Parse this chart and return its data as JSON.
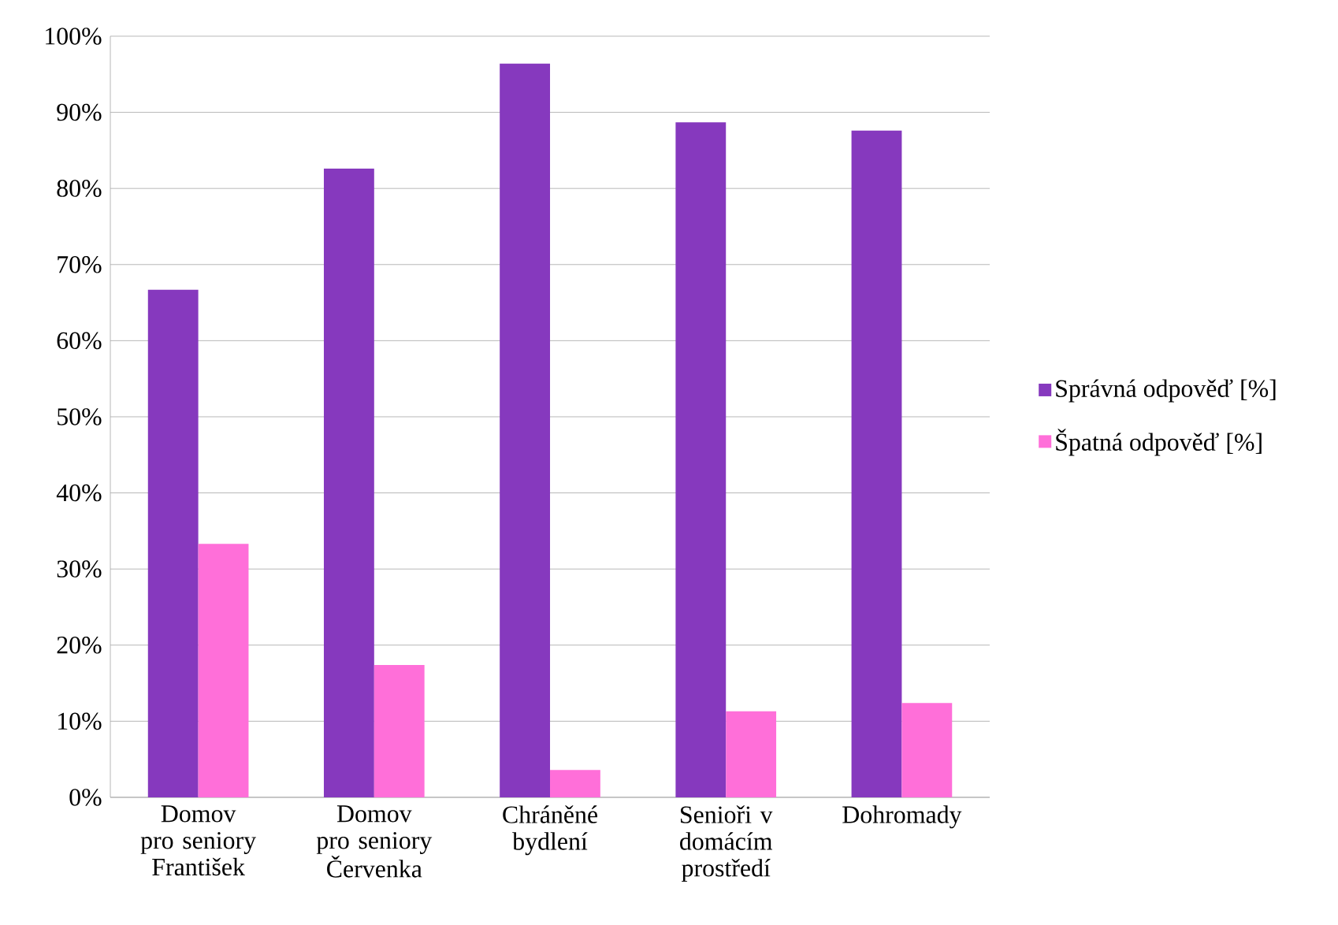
{
  "chart_data": {
    "type": "bar",
    "categories": [
      "Domov pro seniory František",
      "Domov pro seniory Červenka",
      "Chráněné bydlení",
      "Senioři v domácím prostředí",
      "Dohromady"
    ],
    "series": [
      {
        "name": "Správná odpověď [%]",
        "color": "#8639be",
        "values": [
          66.7,
          82.6,
          96.4,
          88.7,
          87.6
        ]
      },
      {
        "name": "Špatná odpověď [%]",
        "color": "#ff6fd9",
        "values": [
          33.3,
          17.4,
          3.6,
          11.3,
          12.4
        ]
      }
    ],
    "ylim": [
      0,
      100
    ],
    "yticks": [
      {
        "value": 0,
        "label": "0%"
      },
      {
        "value": 10,
        "label": "10%"
      },
      {
        "value": 20,
        "label": "20%"
      },
      {
        "value": 30,
        "label": "30%"
      },
      {
        "value": 40,
        "label": "40%"
      },
      {
        "value": 50,
        "label": "50%"
      },
      {
        "value": 60,
        "label": "60%"
      },
      {
        "value": 70,
        "label": "70%"
      },
      {
        "value": 80,
        "label": "80%"
      },
      {
        "value": 90,
        "label": "90%"
      },
      {
        "value": 100,
        "label": "100%"
      }
    ],
    "grid": "y",
    "legend": "right"
  }
}
